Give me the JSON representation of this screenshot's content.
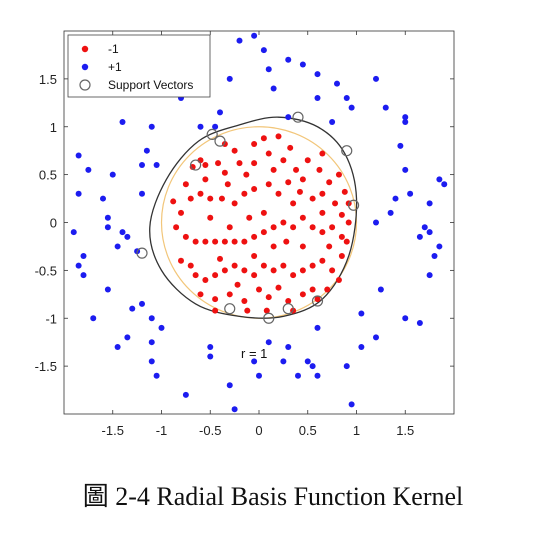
{
  "caption": "圖 2-4 Radial Basis Function Kernel",
  "chart_data": {
    "type": "scatter",
    "title": "",
    "xlabel": "",
    "ylabel": "",
    "xlim": [
      -2,
      2
    ],
    "ylim": [
      -2,
      2
    ],
    "xticks": [
      -1.5,
      -1,
      -0.5,
      0,
      0.5,
      1,
      1.5
    ],
    "xtick_labels": [
      "-1.5",
      "-1",
      "-0.5",
      "0",
      "0.5",
      "1",
      "1.5"
    ],
    "yticks": [
      -1.5,
      -1,
      -0.5,
      0,
      0.5,
      1,
      1.5
    ],
    "ytick_labels": [
      "-1.5",
      "-1",
      "-0.5",
      "0",
      "0.5",
      "1",
      "1.5"
    ],
    "grid": false,
    "legend_position": "top-left",
    "annotation": {
      "text": "r = 1",
      "x": -0.1,
      "y": -1.35
    },
    "colors": {
      "neg": "#ee1111",
      "pos": "#1c1cf0",
      "circle": "#f2c67a",
      "boundary": "#333333",
      "sv": "#666666"
    },
    "series": [
      {
        "name": "-1",
        "marker": "dot",
        "color": "#ee1111",
        "points": [
          [
            -0.6,
            0.65
          ],
          [
            -0.55,
            0.6
          ],
          [
            -0.42,
            0.62
          ],
          [
            -0.35,
            0.52
          ],
          [
            -0.55,
            0.45
          ],
          [
            -0.32,
            0.4
          ],
          [
            -0.2,
            0.62
          ],
          [
            -0.13,
            0.5
          ],
          [
            -0.05,
            0.62
          ],
          [
            0.1,
            0.72
          ],
          [
            0.15,
            0.55
          ],
          [
            0.25,
            0.65
          ],
          [
            0.38,
            0.55
          ],
          [
            0.45,
            0.45
          ],
          [
            0.5,
            0.65
          ],
          [
            0.62,
            0.55
          ],
          [
            0.72,
            0.42
          ],
          [
            0.82,
            0.5
          ],
          [
            0.88,
            0.32
          ],
          [
            0.92,
            0.2
          ],
          [
            0.85,
            0.08
          ],
          [
            0.78,
            0.2
          ],
          [
            0.65,
            0.3
          ],
          [
            0.55,
            0.25
          ],
          [
            0.42,
            0.32
          ],
          [
            0.3,
            0.42
          ],
          [
            0.2,
            0.3
          ],
          [
            0.1,
            0.4
          ],
          [
            -0.05,
            0.35
          ],
          [
            -0.15,
            0.3
          ],
          [
            -0.25,
            0.2
          ],
          [
            -0.38,
            0.25
          ],
          [
            -0.5,
            0.25
          ],
          [
            -0.6,
            0.3
          ],
          [
            -0.7,
            0.25
          ],
          [
            -0.8,
            0.1
          ],
          [
            -0.85,
            -0.05
          ],
          [
            -0.75,
            -0.15
          ],
          [
            -0.65,
            -0.2
          ],
          [
            -0.55,
            -0.2
          ],
          [
            -0.45,
            -0.2
          ],
          [
            -0.35,
            -0.2
          ],
          [
            -0.25,
            -0.2
          ],
          [
            -0.15,
            -0.2
          ],
          [
            -0.05,
            -0.15
          ],
          [
            0.05,
            -0.1
          ],
          [
            0.15,
            -0.05
          ],
          [
            0.25,
            0.0
          ],
          [
            0.35,
            -0.05
          ],
          [
            0.45,
            0.05
          ],
          [
            0.55,
            -0.05
          ],
          [
            0.65,
            -0.1
          ],
          [
            0.75,
            -0.05
          ],
          [
            0.85,
            -0.15
          ],
          [
            -0.8,
            -0.4
          ],
          [
            -0.7,
            -0.45
          ],
          [
            -0.65,
            -0.55
          ],
          [
            -0.55,
            -0.6
          ],
          [
            -0.45,
            -0.55
          ],
          [
            -0.35,
            -0.5
          ],
          [
            -0.25,
            -0.45
          ],
          [
            -0.15,
            -0.5
          ],
          [
            -0.05,
            -0.55
          ],
          [
            0.05,
            -0.45
          ],
          [
            0.15,
            -0.5
          ],
          [
            0.25,
            -0.45
          ],
          [
            0.35,
            -0.55
          ],
          [
            0.45,
            -0.5
          ],
          [
            0.55,
            -0.45
          ],
          [
            0.65,
            -0.4
          ],
          [
            0.75,
            -0.5
          ],
          [
            0.85,
            -0.35
          ],
          [
            -0.6,
            -0.75
          ],
          [
            -0.45,
            -0.8
          ],
          [
            -0.3,
            -0.75
          ],
          [
            -0.15,
            -0.82
          ],
          [
            0.0,
            -0.7
          ],
          [
            0.1,
            -0.78
          ],
          [
            0.2,
            -0.68
          ],
          [
            0.3,
            -0.82
          ],
          [
            0.45,
            -0.75
          ],
          [
            0.55,
            -0.7
          ],
          [
            -0.05,
            0.82
          ],
          [
            0.05,
            0.88
          ],
          [
            0.2,
            0.9
          ],
          [
            0.32,
            0.78
          ],
          [
            -0.25,
            0.75
          ],
          [
            0.65,
            0.72
          ],
          [
            0.05,
            0.1
          ],
          [
            -0.1,
            0.05
          ],
          [
            0.35,
            0.2
          ],
          [
            0.15,
            -0.25
          ],
          [
            -0.3,
            -0.05
          ],
          [
            0.65,
            0.1
          ],
          [
            -0.05,
            -0.35
          ],
          [
            0.45,
            -0.25
          ],
          [
            -0.5,
            0.05
          ],
          [
            0.28,
            -0.2
          ],
          [
            -0.4,
            -0.38
          ],
          [
            0.72,
            -0.25
          ],
          [
            -0.22,
            -0.65
          ],
          [
            0.08,
            -0.92
          ],
          [
            -0.12,
            -0.92
          ],
          [
            0.35,
            -0.92
          ],
          [
            -0.45,
            -0.92
          ],
          [
            -0.35,
            0.82
          ],
          [
            -0.68,
            0.58
          ],
          [
            -0.75,
            0.4
          ],
          [
            -0.88,
            0.22
          ],
          [
            0.92,
            0.0
          ],
          [
            0.9,
            -0.2
          ],
          [
            0.82,
            -0.6
          ],
          [
            0.7,
            -0.7
          ],
          [
            0.6,
            -0.8
          ]
        ]
      },
      {
        "name": "+1",
        "marker": "dot",
        "color": "#1c1cf0",
        "points": [
          [
            -0.9,
            1.6
          ],
          [
            -0.3,
            1.5
          ],
          [
            -0.2,
            1.9
          ],
          [
            -0.05,
            1.95
          ],
          [
            0.05,
            1.8
          ],
          [
            0.1,
            1.6
          ],
          [
            0.3,
            1.7
          ],
          [
            0.45,
            1.65
          ],
          [
            0.6,
            1.55
          ],
          [
            0.8,
            1.45
          ],
          [
            0.9,
            1.3
          ],
          [
            0.95,
            1.2
          ],
          [
            1.2,
            1.5
          ],
          [
            1.5,
            1.1
          ],
          [
            1.5,
            1.05
          ],
          [
            1.45,
            0.8
          ],
          [
            1.5,
            0.55
          ],
          [
            1.55,
            0.3
          ],
          [
            1.85,
            0.45
          ],
          [
            1.9,
            0.4
          ],
          [
            1.75,
            0.2
          ],
          [
            1.4,
            0.25
          ],
          [
            1.35,
            0.1
          ],
          [
            1.2,
            0.0
          ],
          [
            1.7,
            -0.05
          ],
          [
            1.75,
            -0.1
          ],
          [
            1.65,
            -0.15
          ],
          [
            1.85,
            -0.25
          ],
          [
            1.8,
            -0.35
          ],
          [
            1.75,
            -0.55
          ],
          [
            1.25,
            -0.7
          ],
          [
            1.5,
            -1.0
          ],
          [
            1.65,
            -1.05
          ],
          [
            1.2,
            -1.2
          ],
          [
            1.05,
            -1.3
          ],
          [
            0.9,
            -1.5
          ],
          [
            0.95,
            -1.9
          ],
          [
            0.6,
            -1.6
          ],
          [
            0.5,
            -1.45
          ],
          [
            0.4,
            -1.6
          ],
          [
            0.3,
            -1.3
          ],
          [
            0.1,
            -1.25
          ],
          [
            -0.05,
            -1.45
          ],
          [
            0.0,
            -1.6
          ],
          [
            -0.3,
            -1.7
          ],
          [
            -0.5,
            -1.3
          ],
          [
            -0.5,
            -1.4
          ],
          [
            -0.75,
            -1.8
          ],
          [
            -1.1,
            -1.45
          ],
          [
            -1.05,
            -1.6
          ],
          [
            -1.1,
            -1.25
          ],
          [
            -1.1,
            -1.0
          ],
          [
            -1.2,
            -0.85
          ],
          [
            -1.35,
            -1.2
          ],
          [
            -1.3,
            -0.9
          ],
          [
            -1.45,
            -1.3
          ],
          [
            -1.55,
            -0.7
          ],
          [
            -1.7,
            -1.0
          ],
          [
            -1.8,
            -0.55
          ],
          [
            -1.85,
            -0.45
          ],
          [
            -1.8,
            -0.35
          ],
          [
            -1.45,
            -0.25
          ],
          [
            -1.35,
            -0.15
          ],
          [
            -1.4,
            -0.1
          ],
          [
            -1.55,
            -0.05
          ],
          [
            -1.9,
            -0.1
          ],
          [
            -1.55,
            0.05
          ],
          [
            -1.6,
            0.25
          ],
          [
            -1.85,
            0.3
          ],
          [
            -1.75,
            0.55
          ],
          [
            -1.85,
            0.7
          ],
          [
            -1.2,
            0.6
          ],
          [
            -1.15,
            0.75
          ],
          [
            -1.05,
            0.6
          ],
          [
            -1.5,
            0.5
          ],
          [
            -1.4,
            1.05
          ],
          [
            -1.1,
            1.0
          ],
          [
            -0.8,
            1.3
          ],
          [
            -0.4,
            1.15
          ],
          [
            -0.6,
            1.0
          ],
          [
            0.6,
            1.3
          ],
          [
            0.75,
            1.05
          ],
          [
            1.05,
            -0.95
          ],
          [
            -1.2,
            0.3
          ],
          [
            -0.8,
            1.55
          ],
          [
            -1.0,
            -1.1
          ],
          [
            0.25,
            -1.45
          ],
          [
            0.55,
            -1.5
          ],
          [
            -0.25,
            -1.95
          ],
          [
            -0.45,
            1.0
          ],
          [
            0.3,
            1.1
          ],
          [
            -1.25,
            -0.3
          ],
          [
            1.3,
            1.2
          ],
          [
            0.15,
            1.4
          ],
          [
            0.6,
            -1.1
          ]
        ]
      },
      {
        "name": "Support Vectors",
        "marker": "ring",
        "color": "#666666",
        "points": [
          [
            -0.48,
            0.92
          ],
          [
            -0.4,
            0.85
          ],
          [
            0.4,
            1.1
          ],
          [
            0.9,
            0.75
          ],
          [
            -0.65,
            0.6
          ],
          [
            0.97,
            0.18
          ],
          [
            -1.2,
            -0.32
          ],
          [
            -0.3,
            -0.9
          ],
          [
            0.1,
            -1.0
          ],
          [
            0.3,
            -0.9
          ],
          [
            0.6,
            -0.82
          ]
        ]
      }
    ]
  }
}
